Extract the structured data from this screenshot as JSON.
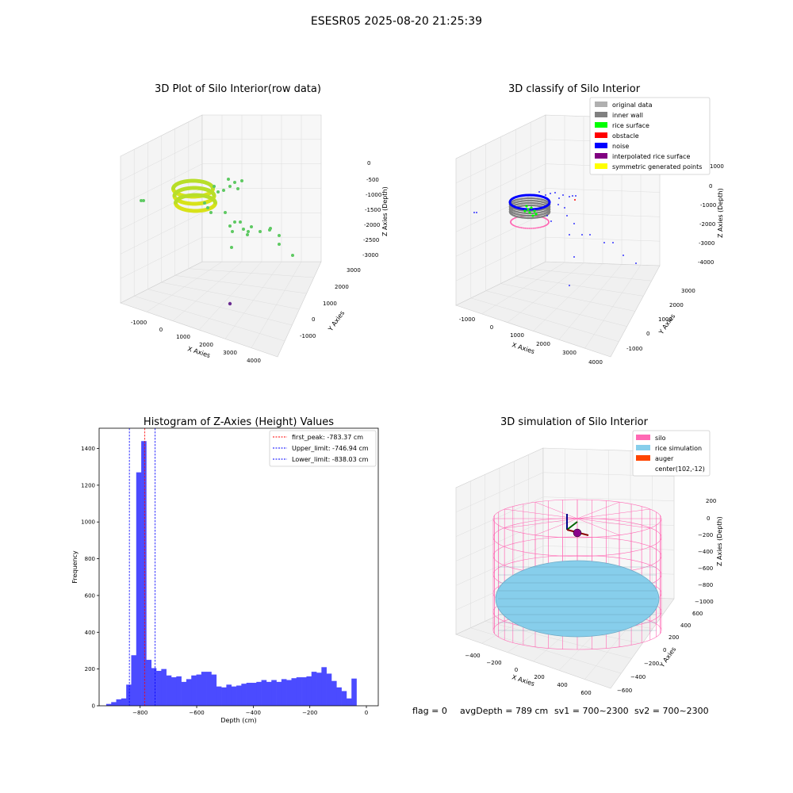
{
  "figure": {
    "suptitle": "ESESR05 2025-08-20 21:25:39",
    "footer": {
      "flag": "flag = 0",
      "avg_depth": "avgDepth = 789 cm",
      "sv1": "sv1 = 700~2300",
      "sv2": "sv2 = 700~2300"
    }
  },
  "chart_data": [
    {
      "type": "scatter3d",
      "title": "3D Plot of Silo Interior(row data)",
      "xlabel": "X Axies",
      "ylabel": "Y Axies",
      "zlabel": "Z Axies (Depth)",
      "x_ticks": [
        "-1000",
        "0",
        "1000",
        "2000",
        "3000",
        "4000"
      ],
      "y_ticks": [
        "-1000",
        "0",
        "1000",
        "2000",
        "3000"
      ],
      "z_ticks": [
        "0",
        "-500",
        "-1000",
        "-1500",
        "-2000",
        "-2500",
        "-3000"
      ],
      "colormap": "viridis"
    },
    {
      "type": "scatter3d",
      "title": "3D classify of Silo Interior",
      "xlabel": "X Axies",
      "ylabel": "Y Axies",
      "zlabel": "Z Axies (Depth)",
      "x_ticks": [
        "-1000",
        "0",
        "1000",
        "2000",
        "3000",
        "4000"
      ],
      "y_ticks": [
        "-1000",
        "0",
        "1000",
        "2000",
        "3000"
      ],
      "z_ticks": [
        "1000",
        "0",
        "-1000",
        "-2000",
        "-3000",
        "-4000"
      ],
      "legend_position": "top-right",
      "legend": [
        {
          "label": "original data",
          "color": "#b0b0b0"
        },
        {
          "label": "inner wall",
          "color": "#808080"
        },
        {
          "label": "rice surface",
          "color": "#00ff00"
        },
        {
          "label": "obstacle",
          "color": "#ff0000"
        },
        {
          "label": "noise",
          "color": "#0000ff"
        },
        {
          "label": "interpolated rice surface",
          "color": "#800080"
        },
        {
          "label": "symmetric generated points",
          "color": "#ffff00"
        }
      ]
    },
    {
      "type": "bar",
      "title": "Histogram of Z-Axies (Height) Values",
      "xlabel": "Depth (cm)",
      "ylabel": "Frequency",
      "xlim": [
        -945,
        42
      ],
      "ylim": [
        0,
        1510
      ],
      "x_ticks": [
        -800,
        -600,
        -400,
        -200,
        0
      ],
      "x_tick_labels": [
        "−800",
        "−600",
        "−400",
        "−200",
        "0"
      ],
      "y_ticks": [
        0,
        200,
        400,
        600,
        800,
        1000,
        1200,
        1400
      ],
      "bar_color": "#4b4bff",
      "bin_start": -920,
      "bin_width": 17.7,
      "values": [
        10,
        20,
        35,
        40,
        115,
        275,
        1270,
        1440,
        250,
        205,
        190,
        200,
        165,
        155,
        160,
        130,
        145,
        165,
        170,
        185,
        185,
        170,
        105,
        100,
        115,
        105,
        110,
        120,
        125,
        125,
        130,
        140,
        130,
        140,
        130,
        145,
        140,
        150,
        155,
        155,
        160,
        185,
        180,
        210,
        175,
        135,
        100,
        80,
        40,
        148
      ],
      "legend_position": "top-right",
      "lines": [
        {
          "label": "first_peak: -783.37 cm",
          "x": -783.37,
          "color": "#ff0000"
        },
        {
          "label": "Upper_limit: -746.94 cm",
          "x": -746.94,
          "color": "#0000ff"
        },
        {
          "label": "Lower_limit: -838.03 cm",
          "x": -838.03,
          "color": "#0000ff"
        }
      ]
    },
    {
      "type": "surface3d",
      "title": "3D simulation of Silo Interior",
      "xlabel": "X Axies",
      "ylabel": "Y Axies",
      "zlabel": "Z Axies (Depth)",
      "x_ticks": [
        "−400",
        "−200",
        "0",
        "200",
        "400",
        "600"
      ],
      "y_ticks": [
        "−600",
        "−400",
        "−200",
        "0",
        "200",
        "400",
        "600"
      ],
      "z_ticks": [
        "200",
        "0",
        "−200",
        "−400",
        "−600",
        "−800",
        "−1000"
      ],
      "legend_position": "top-right",
      "legend": [
        {
          "label": "silo",
          "color": "#ff69b4"
        },
        {
          "label": "rice simulation",
          "color": "#87ceeb"
        },
        {
          "label": "auger",
          "color": "#ff4500"
        },
        {
          "label": "center(102,-12)",
          "color": ""
        }
      ]
    }
  ]
}
